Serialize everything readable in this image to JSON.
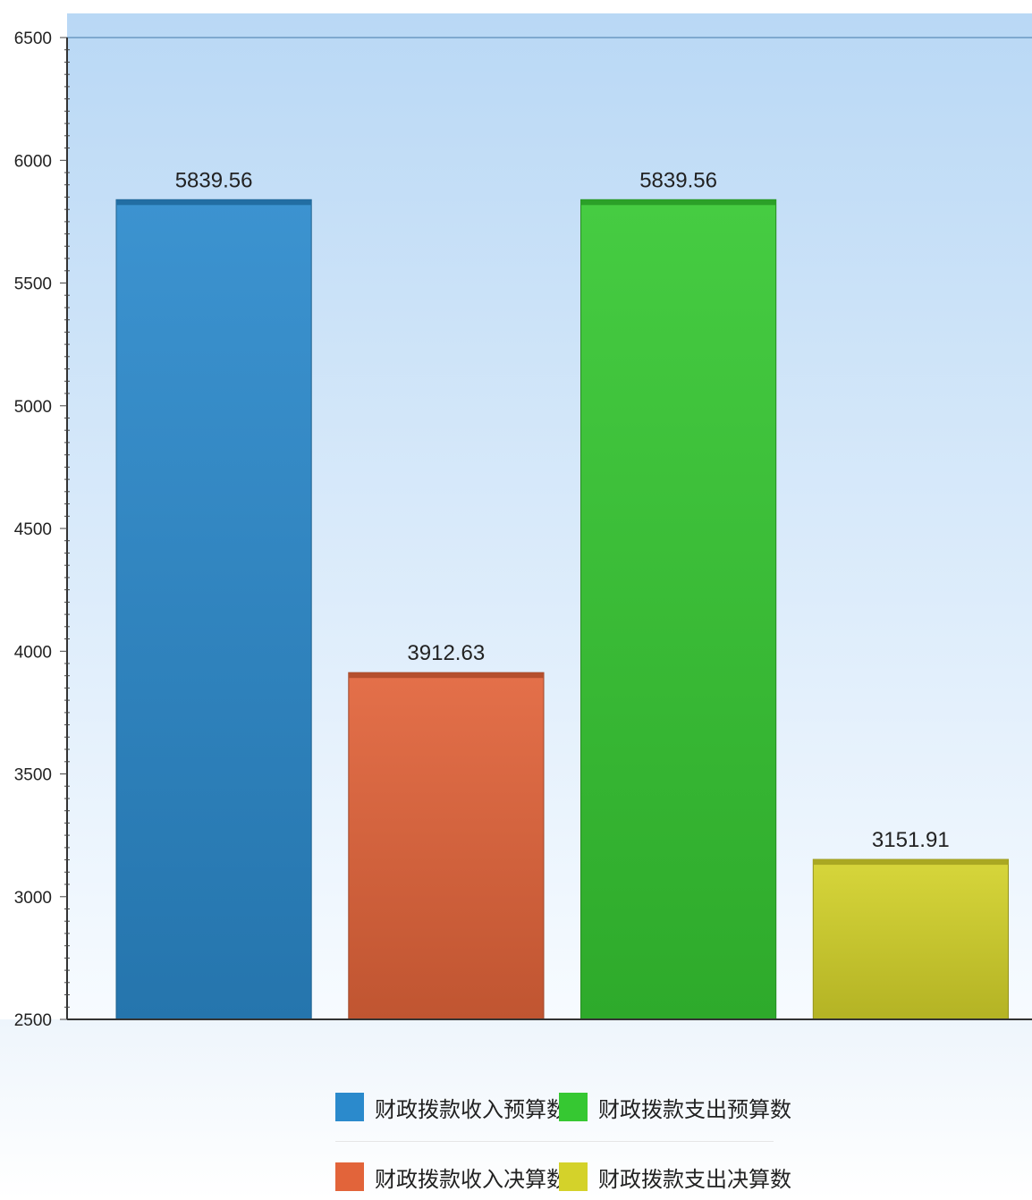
{
  "chart_data": {
    "type": "bar",
    "title": "",
    "xlabel": "",
    "ylabel": "",
    "ylim": [
      2500,
      6500
    ],
    "yticks": [
      2500,
      3000,
      3500,
      4000,
      4500,
      5000,
      5500,
      6000,
      6500
    ],
    "grid": false,
    "legend_position": "bottom",
    "series": [
      {
        "name": "财政拨款收入预算数",
        "value": 5839.56,
        "label": "5839.56",
        "color": "#2b8acc"
      },
      {
        "name": "财政拨款收入决算数",
        "value": 3912.63,
        "label": "3912.63",
        "color": "#e2643a"
      },
      {
        "name": "财政拨款支出预算数",
        "value": 5839.56,
        "label": "5839.56",
        "color": "#36c832"
      },
      {
        "name": "财政拨款支出决算数",
        "value": 3151.91,
        "label": "3151.91",
        "color": "#d4d22a"
      }
    ]
  },
  "legend": {
    "items": [
      {
        "label": "财政拨款收入预算数",
        "color": "#2b8acc"
      },
      {
        "label": "财政拨款支出预算数",
        "color": "#36c832"
      },
      {
        "label": "财政拨款收入决算数",
        "color": "#e2643a"
      },
      {
        "label": "财政拨款支出决算数",
        "color": "#d4d22a"
      }
    ]
  }
}
